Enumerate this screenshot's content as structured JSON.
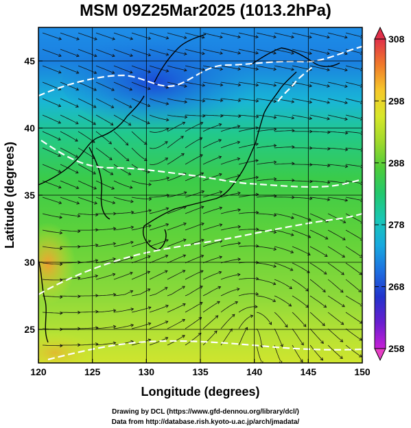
{
  "title": "MSM 09Z25Mar2025 (1013.2hPa)",
  "axes": {
    "xlabel": "Longitude (degrees)",
    "ylabel": "Latitude  (degrees)",
    "xticks": [
      "120",
      "125",
      "130",
      "135",
      "140",
      "145",
      "150"
    ],
    "yticks": [
      "25",
      "30",
      "35",
      "40",
      "45"
    ]
  },
  "colorbar": {
    "labels": [
      "308",
      "298",
      "288",
      "278",
      "268",
      "258"
    ],
    "colors": [
      "#e0304a",
      "#f07a2a",
      "#f6c92a",
      "#d7e72a",
      "#9fd92c",
      "#4dcc3a",
      "#22c86e",
      "#19c7b6",
      "#18a9df",
      "#1d6fe0",
      "#2233cc",
      "#6a1ecf",
      "#c71fd6"
    ]
  },
  "chart_data": {
    "type": "heatmap",
    "title": "MSM 09Z25Mar2025 (1013.2hPa)",
    "xlabel": "Longitude (degrees)",
    "ylabel": "Latitude  (degrees)",
    "xlim": [
      120,
      150
    ],
    "ylim": [
      22.5,
      47.5
    ],
    "xticks": [
      120,
      125,
      130,
      135,
      140,
      145,
      150
    ],
    "yticks": [
      25,
      30,
      35,
      40,
      45
    ],
    "color_range": [
      258,
      308
    ],
    "colorbar_ticks": [
      258,
      268,
      278,
      288,
      298,
      308
    ],
    "grid": true,
    "overlay": "streamlines"
  },
  "credits": {
    "line1": "Drawing by DCL (https://www.gfd-dennou.org/library/dcl/)",
    "line2": "Data from http://database.rish.kyoto-u.ac.jp/arch/jmadata/"
  }
}
